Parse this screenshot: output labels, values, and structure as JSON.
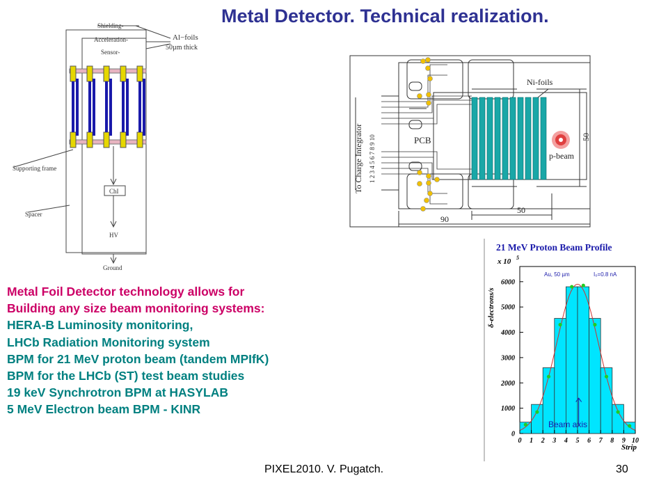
{
  "slide": {
    "title": "Metal Detector. Technical realization.",
    "lines_red": [
      "Metal Foil Detector technology allows for",
      "Building any size beam monitoring systems:"
    ],
    "lines_teal": [
      "HERA-B Luminosity monitoring,",
      "LHCb Radiation Monitoring system",
      "BPM for 21 MeV proton beam (tandem MPIfK)",
      "BPM for the LHCb (ST) test beam studies",
      "19 keV Synchrotron BPM at HASYLAB",
      "5 MeV Electron beam BPM - KINR"
    ],
    "footer_left": "PIXEL2010. V. Pugatch.",
    "footer_right": "30",
    "colors": {
      "title": "#2e3192",
      "red_text": "#cc0066",
      "teal_text": "#008080"
    }
  },
  "schematic": {
    "labels": {
      "shielding": "Shielding-",
      "acceleration": "Acceleration-",
      "sensor": "Sensor-",
      "al_foils": "Al−foils",
      "thickness": "50µm thick",
      "supporting_frame": "Supporting frame",
      "spacer": "Spacer",
      "chi": "ChI",
      "hv": "HV",
      "ground": "Ground"
    }
  },
  "pcb_drawing": {
    "labels": {
      "charge_integrator": "To Charge Integrator",
      "channels": "1 2 3 4 5 6 7 8 9 10",
      "pcb": "PCB",
      "ni_foils": "Ni-foils",
      "p_beam": "p-beam",
      "dim_height": "50",
      "dim_width_inner": "50",
      "dim_width_outer": "90"
    }
  },
  "chart_data": {
    "type": "bar",
    "title": "21 MeV Proton Beam Profile",
    "ylabel": "δ-electrons/s",
    "multiplier": "x 10",
    "multiplier_exp": "5",
    "xlabel": "Strip",
    "annotation_left": "Au, 50 µm",
    "annotation_right": "I₀=0.8 nA",
    "annotation_axis": "Beam axis",
    "x_ticks": [
      "0",
      "1",
      "2",
      "3",
      "4",
      "5",
      "6",
      "7",
      "8",
      "9",
      "10"
    ],
    "y_ticks": [
      "0",
      "1000",
      "2000",
      "3000",
      "4000",
      "5000",
      "6000"
    ],
    "ylim": [
      0,
      6600
    ],
    "xlim": [
      0,
      10
    ],
    "bin_values": [
      450,
      1150,
      2600,
      4550,
      5800,
      5800,
      4550,
      2600,
      1150,
      450
    ],
    "points_x": [
      0.5,
      1.5,
      2.5,
      3.5,
      4.5,
      5.5,
      6.5,
      7.5,
      8.5,
      9.5
    ],
    "points_y": [
      350,
      850,
      2250,
      4300,
      5800,
      5850,
      4300,
      2250,
      850,
      300
    ],
    "fit_mean": 5,
    "fit_sigma": 1.8,
    "fit_amplitude": 5900,
    "fill_color": "#00e5ff",
    "point_color": "#22cc22",
    "fit_color": "#cc3333",
    "title_color": "#1a1aaa"
  }
}
